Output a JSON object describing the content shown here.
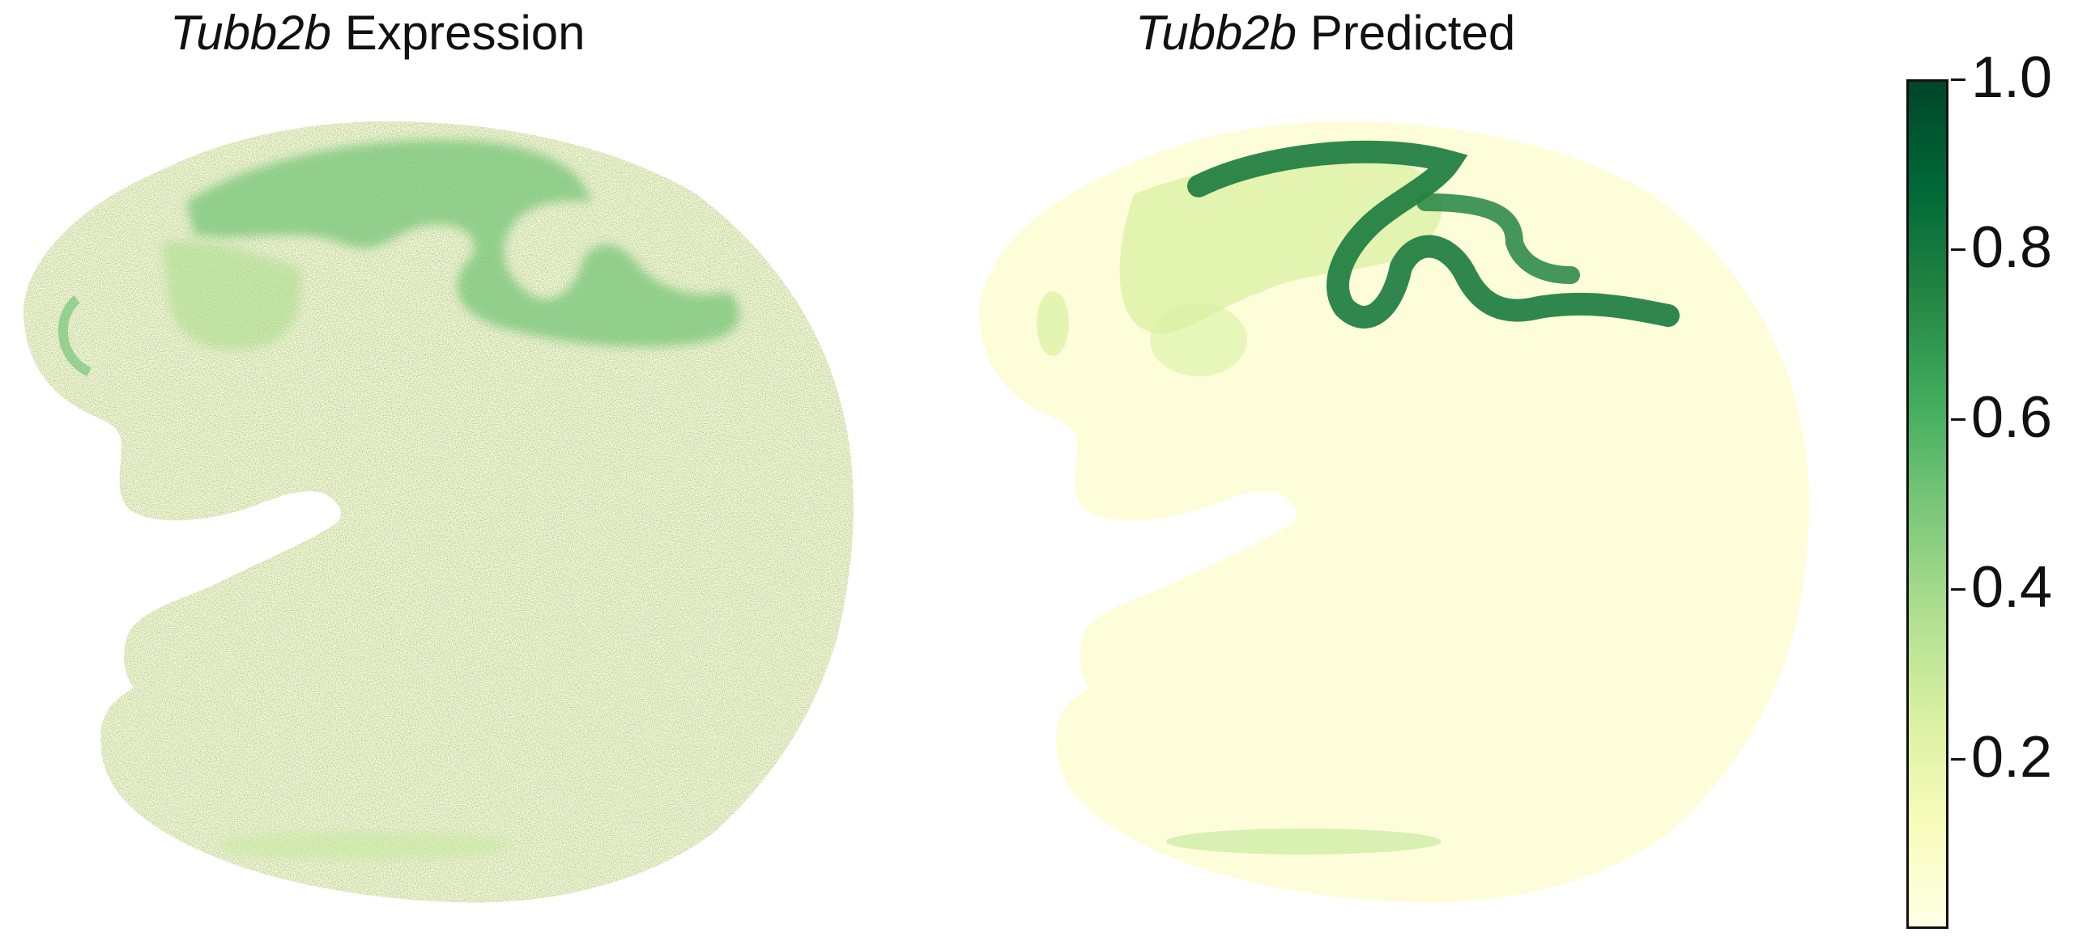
{
  "panels": [
    {
      "gene": "Tubb2b",
      "label": "Expression"
    },
    {
      "gene": "Tubb2b",
      "label": "Predicted"
    }
  ],
  "colorbar": {
    "ticks": [
      "1.0",
      "0.8",
      "0.6",
      "0.4",
      "0.2"
    ],
    "tick_values": [
      1.0,
      0.8,
      0.6,
      0.4,
      0.2
    ],
    "min": 0.0,
    "max": 1.0,
    "colors": [
      "#ffffe5",
      "#f7fcb9",
      "#d9f0a3",
      "#addd8e",
      "#78c679",
      "#41ab5d",
      "#238443",
      "#006837",
      "#004529"
    ]
  }
}
